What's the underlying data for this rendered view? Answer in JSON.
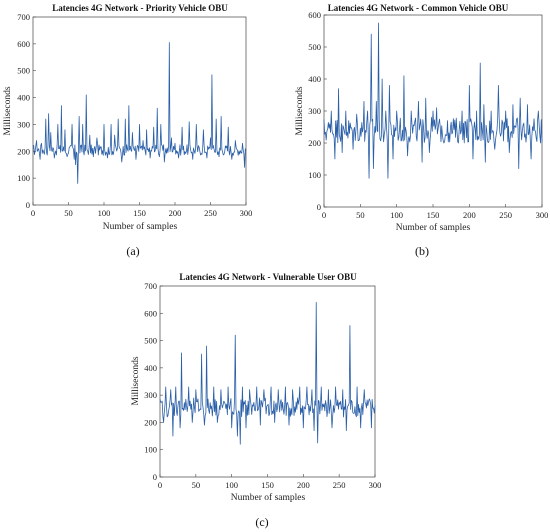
{
  "chart_data": [
    {
      "type": "line",
      "title": "Latencies 4G Network - Priority Vehicle OBU",
      "xlabel": "Number of samples",
      "ylabel": "Milliseconds",
      "xlim": [
        0,
        300
      ],
      "ylim": [
        0,
        700
      ],
      "xticks": [
        0,
        50,
        100,
        150,
        200,
        250,
        300
      ],
      "yticks": [
        0,
        100,
        200,
        300,
        400,
        500,
        600,
        700
      ],
      "grid": false,
      "panel_label": "(a)",
      "color": "#2a5fa8",
      "series": [
        {
          "base": 205,
          "noise": 20,
          "x": [
            0,
            300
          ],
          "spikes": [
            [
              5,
              240
            ],
            [
              12,
              230
            ],
            [
              18,
              320
            ],
            [
              22,
              340
            ],
            [
              25,
              270
            ],
            [
              35,
              300
            ],
            [
              40,
              370
            ],
            [
              45,
              280
            ],
            [
              55,
              300
            ],
            [
              60,
              150
            ],
            [
              63,
              80
            ],
            [
              65,
              330
            ],
            [
              70,
              300
            ],
            [
              75,
              410
            ],
            [
              80,
              260
            ],
            [
              90,
              250
            ],
            [
              100,
              300
            ],
            [
              110,
              300
            ],
            [
              115,
              260
            ],
            [
              120,
              320
            ],
            [
              130,
              320
            ],
            [
              135,
              370
            ],
            [
              140,
              270
            ],
            [
              150,
              300
            ],
            [
              155,
              240
            ],
            [
              160,
              280
            ],
            [
              170,
              290
            ],
            [
              175,
              360
            ],
            [
              180,
              300
            ],
            [
              185,
              160
            ],
            [
              192,
              605
            ],
            [
              195,
              250
            ],
            [
              200,
              230
            ],
            [
              210,
              290
            ],
            [
              220,
              310
            ],
            [
              230,
              300
            ],
            [
              240,
              280
            ],
            [
              250,
              250
            ],
            [
              252,
              485
            ],
            [
              258,
              320
            ],
            [
              265,
              330
            ],
            [
              275,
              290
            ],
            [
              285,
              240
            ],
            [
              295,
              230
            ]
          ],
          "dips": [
            [
              10,
              170
            ],
            [
              30,
              175
            ],
            [
              48,
              180
            ],
            [
              58,
              170
            ],
            [
              85,
              180
            ],
            [
              105,
              175
            ],
            [
              125,
              160
            ],
            [
              145,
              170
            ],
            [
              165,
              175
            ],
            [
              178,
              180
            ],
            [
              205,
              175
            ],
            [
              225,
              170
            ],
            [
              245,
              175
            ],
            [
              262,
              180
            ],
            [
              280,
              170
            ],
            [
              298,
              140
            ]
          ]
        }
      ]
    },
    {
      "type": "line",
      "title": "Latencies 4G Network - Common Vehicle OBU",
      "xlabel": "Number of samples",
      "ylabel": "Milliseconds",
      "xlim": [
        0,
        300
      ],
      "ylim": [
        0,
        600
      ],
      "xticks": [
        0,
        50,
        100,
        150,
        200,
        250,
        300
      ],
      "yticks": [
        0,
        100,
        200,
        300,
        400,
        500,
        600
      ],
      "grid": false,
      "panel_label": "(b)",
      "color": "#2a5fa8",
      "series": [
        {
          "base": 240,
          "noise": 40,
          "x": [
            0,
            300
          ],
          "spikes": [
            [
              10,
              300
            ],
            [
              20,
              370
            ],
            [
              30,
              300
            ],
            [
              45,
              290
            ],
            [
              55,
              330
            ],
            [
              60,
              300
            ],
            [
              65,
              540
            ],
            [
              72,
              330
            ],
            [
              75,
              575
            ],
            [
              80,
              400
            ],
            [
              85,
              300
            ],
            [
              90,
              380
            ],
            [
              100,
              300
            ],
            [
              110,
              410
            ],
            [
              120,
              300
            ],
            [
              130,
              330
            ],
            [
              140,
              340
            ],
            [
              150,
              300
            ],
            [
              155,
              310
            ],
            [
              170,
              270
            ],
            [
              190,
              300
            ],
            [
              200,
              380
            ],
            [
              210,
              300
            ],
            [
              215,
              450
            ],
            [
              220,
              320
            ],
            [
              230,
              300
            ],
            [
              240,
              380
            ],
            [
              250,
              300
            ],
            [
              260,
              320
            ],
            [
              270,
              340
            ],
            [
              280,
              320
            ],
            [
              295,
              300
            ]
          ],
          "dips": [
            [
              15,
              150
            ],
            [
              25,
              170
            ],
            [
              40,
              180
            ],
            [
              62,
              90
            ],
            [
              68,
              120
            ],
            [
              88,
              90
            ],
            [
              95,
              150
            ],
            [
              115,
              160
            ],
            [
              135,
              140
            ],
            [
              145,
              170
            ],
            [
              165,
              200
            ],
            [
              185,
              200
            ],
            [
              205,
              150
            ],
            [
              222,
              140
            ],
            [
              235,
              180
            ],
            [
              255,
              170
            ],
            [
              268,
              120
            ],
            [
              285,
              150
            ],
            [
              298,
              200
            ]
          ]
        }
      ]
    },
    {
      "type": "line",
      "title": "Latencies 4G Network - Vulnerable User OBU",
      "xlabel": "Number of samples",
      "ylabel": "Milliseconds",
      "xlim": [
        0,
        300
      ],
      "ylim": [
        0,
        700
      ],
      "xticks": [
        0,
        50,
        100,
        150,
        200,
        250,
        300
      ],
      "yticks": [
        0,
        100,
        200,
        300,
        400,
        500,
        600,
        700
      ],
      "grid": false,
      "panel_label": "(c)",
      "color": "#2a5fa8",
      "series": [
        {
          "base": 255,
          "noise": 35,
          "x": [
            0,
            300
          ],
          "spikes": [
            [
              8,
              330
            ],
            [
              15,
              320
            ],
            [
              22,
              330
            ],
            [
              30,
              455
            ],
            [
              40,
              330
            ],
            [
              50,
              320
            ],
            [
              58,
              450
            ],
            [
              65,
              480
            ],
            [
              75,
              330
            ],
            [
              85,
              320
            ],
            [
              95,
              330
            ],
            [
              105,
              520
            ],
            [
              115,
              330
            ],
            [
              125,
              320
            ],
            [
              135,
              330
            ],
            [
              145,
              320
            ],
            [
              155,
              330
            ],
            [
              165,
              320
            ],
            [
              175,
              330
            ],
            [
              185,
              320
            ],
            [
              195,
              330
            ],
            [
              205,
              330
            ],
            [
              212,
              320
            ],
            [
              218,
              640
            ],
            [
              225,
              330
            ],
            [
              235,
              320
            ],
            [
              245,
              330
            ],
            [
              255,
              320
            ],
            [
              265,
              555
            ],
            [
              275,
              330
            ],
            [
              285,
              320
            ],
            [
              295,
              360
            ]
          ],
          "dips": [
            [
              5,
              200
            ],
            [
              18,
              150
            ],
            [
              28,
              180
            ],
            [
              45,
              200
            ],
            [
              62,
              190
            ],
            [
              80,
              200
            ],
            [
              100,
              180
            ],
            [
              108,
              150
            ],
            [
              112,
              120
            ],
            [
              120,
              180
            ],
            [
              140,
              190
            ],
            [
              160,
              200
            ],
            [
              180,
              190
            ],
            [
              200,
              180
            ],
            [
              215,
              170
            ],
            [
              220,
              125
            ],
            [
              240,
              180
            ],
            [
              260,
              170
            ],
            [
              280,
              180
            ],
            [
              295,
              180
            ]
          ]
        }
      ]
    }
  ]
}
